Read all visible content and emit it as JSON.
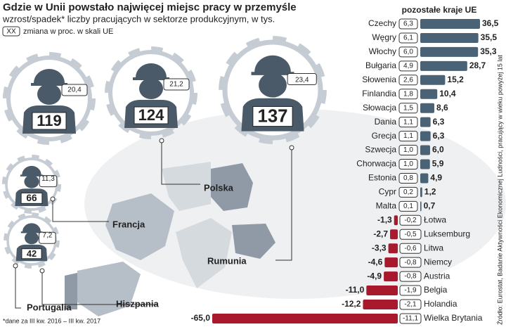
{
  "title": "Gdzie w Unii powstało najwięcej miejsc pracy w przemyśle",
  "subtitle": "wzrost/spadek* liczby pracujących w sektorze produkcyjnym, w tys.",
  "legend": {
    "box": "XX",
    "text": "zmiana w proc. w skali UE"
  },
  "footnote": "*dane za III kw. 2016 – III kw. 2017",
  "source": "Źródło: Eurostat, Badanie Aktywności Ekonomicznej Ludności, pracujący w wieku powyżej 15 lat",
  "highlights": [
    {
      "country": "Hiszpania",
      "value": 119,
      "pct": 20.4,
      "pct_label": "20,4"
    },
    {
      "country": "Polska",
      "value": 124,
      "pct": 21.2,
      "pct_label": "21,2"
    },
    {
      "country": "Rumunia",
      "value": 137,
      "pct": 23.4,
      "pct_label": "23,4"
    },
    {
      "country": "Francja",
      "value": 66,
      "pct": 11.3,
      "pct_label": "11,3"
    },
    {
      "country": "Portugalia",
      "value": 42,
      "pct": 7.2,
      "pct_label": "7,2"
    }
  ],
  "chart_data": {
    "type": "bar",
    "title": "pozostałe kraje UE",
    "categories": [
      "Czechy",
      "Węgry",
      "Włochy",
      "Bułgaria",
      "Słowenia",
      "Finlandia",
      "Słowacja",
      "Dania",
      "Grecja",
      "Szwecja",
      "Chorwacja",
      "Estonia",
      "Cypr",
      "Malta",
      "Łotwa",
      "Luksemburg",
      "Litwa",
      "Niemcy",
      "Austria",
      "Belgia",
      "Holandia",
      "Wielka Brytania"
    ],
    "values": [
      36.5,
      35.5,
      35.3,
      28.7,
      15.2,
      10.4,
      8.6,
      6.3,
      6.3,
      6.0,
      5.9,
      4.9,
      1.2,
      0.7,
      -1.3,
      -2.7,
      -3.3,
      -4.6,
      -4.9,
      -11.0,
      -12.2,
      -65.0
    ],
    "value_labels": [
      "36,5",
      "35,5",
      "35,3",
      "28,7",
      "15,2",
      "10,4",
      "8,6",
      "6,3",
      "6,3",
      "6,0",
      "5,9",
      "4,9",
      "1,2",
      "0,7",
      "-1,3",
      "-2,7",
      "-3,3",
      "-4,6",
      "-4,9",
      "-11,0",
      "-12,2",
      "-65,0"
    ],
    "pct": [
      6.3,
      6.1,
      6.0,
      4.9,
      2.6,
      1.8,
      1.5,
      1.1,
      1.1,
      1.0,
      1.0,
      0.8,
      0.2,
      0.1,
      -0.2,
      -0.5,
      -0.6,
      -0.8,
      -0.8,
      -1.9,
      -2.1,
      -11.1
    ],
    "pct_labels": [
      "6,3",
      "6,1",
      "6,0",
      "4,9",
      "2,6",
      "1,8",
      "1,5",
      "1,1",
      "1,1",
      "1,0",
      "1,0",
      "0,8",
      "0,2",
      "0,1",
      "-0,2",
      "-0,5",
      "-0,6",
      "-0,8",
      "-0,8",
      "-1,9",
      "-2,1",
      "-11,1"
    ],
    "colors": {
      "positive": "#4a6275",
      "negative": "#a8192e"
    }
  }
}
